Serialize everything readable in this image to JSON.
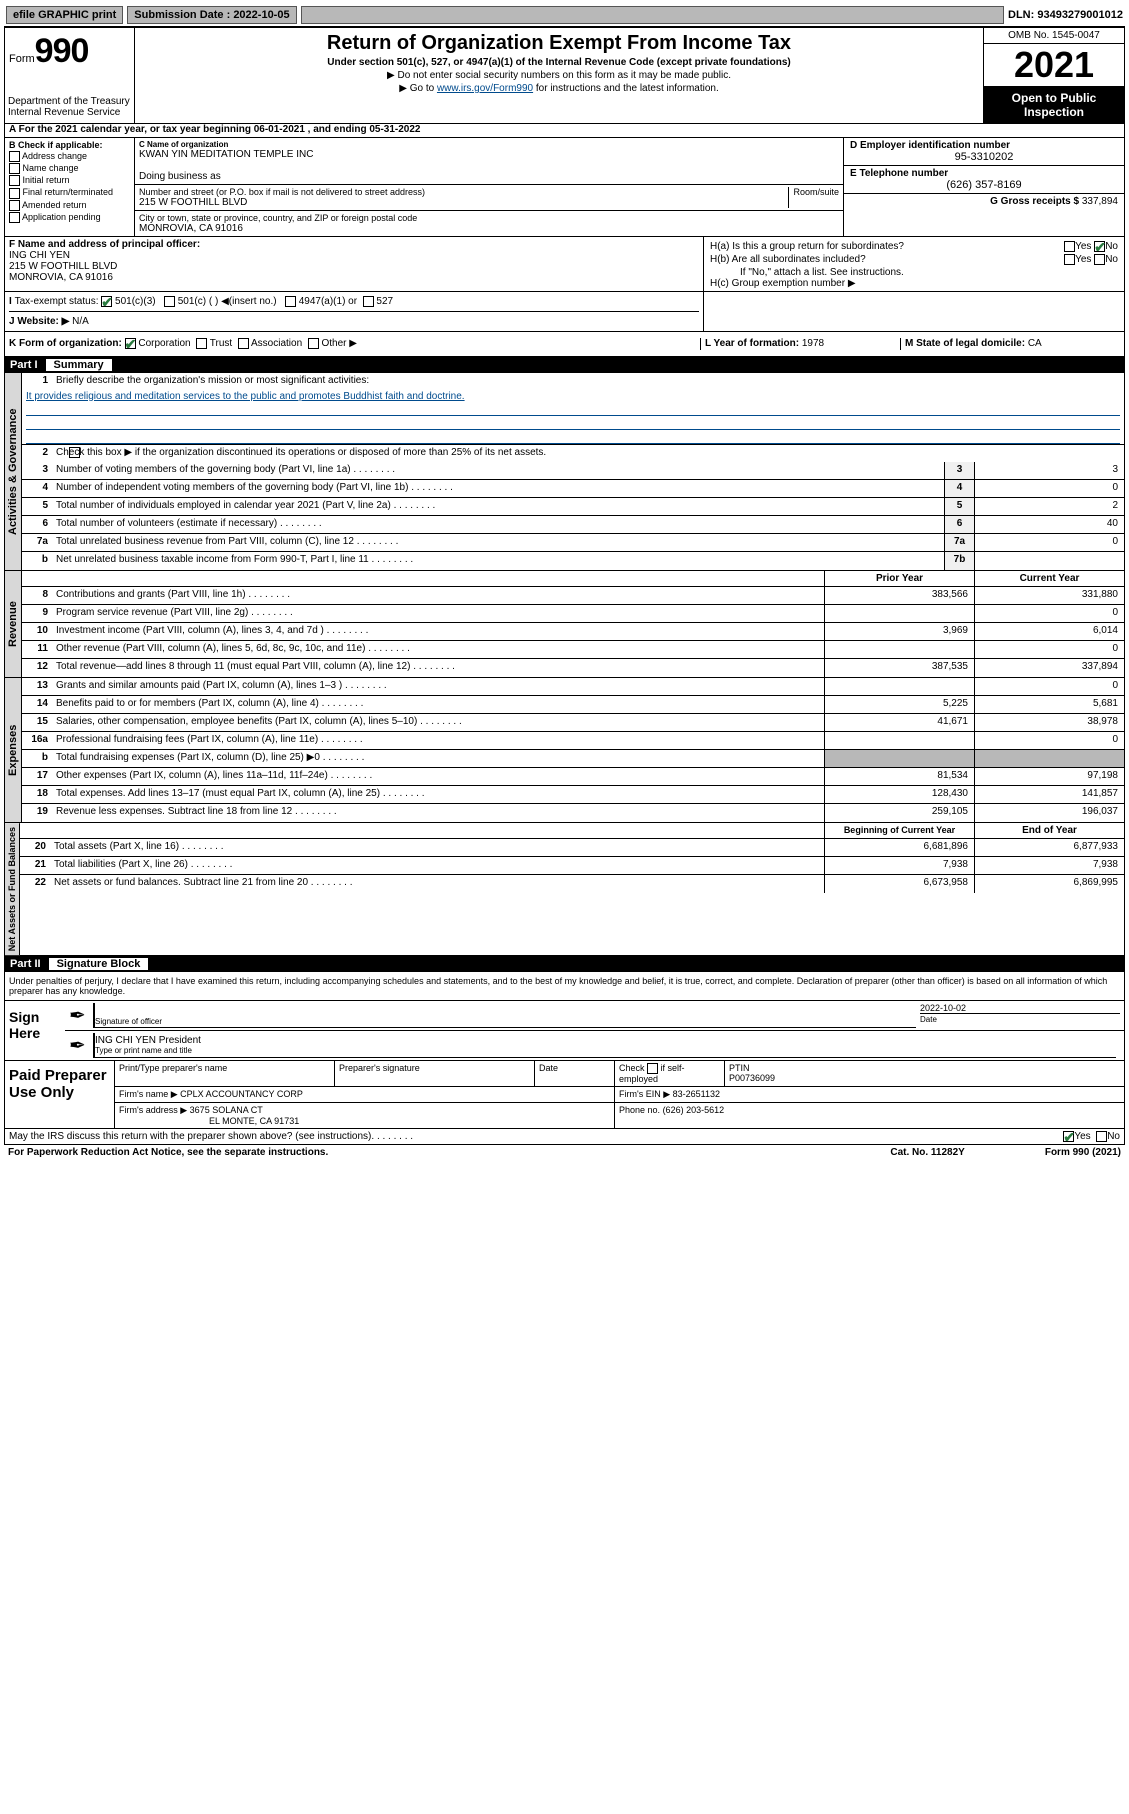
{
  "topbar": {
    "efile": "efile GRAPHIC print",
    "submission_label": "Submission Date : 2022-10-05",
    "dln": "DLN: 93493279001012"
  },
  "header": {
    "form_label": "Form",
    "form_num": "990",
    "title": "Return of Organization Exempt From Income Tax",
    "sub": "Under section 501(c), 527, or 4947(a)(1) of the Internal Revenue Code (except private foundations)",
    "instr1": "▶ Do not enter social security numbers on this form as it may be made public.",
    "instr2_pre": "▶ Go to ",
    "instr2_link": "www.irs.gov/Form990",
    "instr2_post": " for instructions and the latest information.",
    "omb": "OMB No. 1545-0047",
    "year": "2021",
    "open": "Open to Public Inspection",
    "dept": "Department of the Treasury\nInternal Revenue Service"
  },
  "row_a": {
    "text": "For the 2021 calendar year, or tax year beginning 06-01-2021   , and ending 05-31-2022"
  },
  "box_b": {
    "title": "B Check if applicable:",
    "opts": [
      "Address change",
      "Name change",
      "Initial return",
      "Final return/terminated",
      "Amended return",
      "Application pending"
    ]
  },
  "box_c": {
    "name_lbl": "C Name of organization",
    "name": "KWAN YIN MEDITATION TEMPLE INC",
    "dba_lbl": "Doing business as",
    "addr_lbl": "Number and street (or P.O. box if mail is not delivered to street address)",
    "room_lbl": "Room/suite",
    "addr": "215 W FOOTHILL BLVD",
    "city_lbl": "City or town, state or province, country, and ZIP or foreign postal code",
    "city": "MONROVIA, CA  91016"
  },
  "box_de": {
    "d_lbl": "D Employer identification number",
    "ein": "95-3310202",
    "e_lbl": "E Telephone number",
    "phone": "(626) 357-8169",
    "g_lbl": "G Gross receipts $",
    "gross": "337,894"
  },
  "box_f": {
    "lbl": "F Name and address of principal officer:",
    "name": "ING CHI YEN",
    "addr1": "215 W FOOTHILL BLVD",
    "addr2": "MONROVIA, CA  91016"
  },
  "box_h": {
    "ha": "H(a)  Is this a group return for subordinates?",
    "hb": "H(b)  Are all subordinates included?",
    "hb_note": "If \"No,\" attach a list. See instructions.",
    "hc": "H(c)  Group exemption number ▶",
    "yes": "Yes",
    "no": "No"
  },
  "row_i": {
    "lbl": "Tax-exempt status:",
    "opt1": "501(c)(3)",
    "opt2": "501(c) (  ) ◀(insert no.)",
    "opt3": "4947(a)(1) or",
    "opt4": "527"
  },
  "row_j": {
    "lbl": "Website: ▶",
    "val": "N/A"
  },
  "row_k": {
    "lbl": "K Form of organization:",
    "opts": [
      "Corporation",
      "Trust",
      "Association",
      "Other ▶"
    ],
    "l_lbl": "L Year of formation:",
    "l_val": "1978",
    "m_lbl": "M State of legal domicile:",
    "m_val": "CA"
  },
  "part1": {
    "num": "Part I",
    "title": "Summary"
  },
  "summary": {
    "q1": "Briefly describe the organization's mission or most significant activities:",
    "mission": "It provides religious and meditation services to the public and promotes Buddhist faith and doctrine.",
    "q2": "Check this box ▶      if the organization discontinued its operations or disposed of more than 25% of its net assets.",
    "rows_gov": [
      {
        "n": "3",
        "d": "Number of voting members of the governing body (Part VI, line 1a)",
        "k": "3",
        "v": "3"
      },
      {
        "n": "4",
        "d": "Number of independent voting members of the governing body (Part VI, line 1b)",
        "k": "4",
        "v": "0"
      },
      {
        "n": "5",
        "d": "Total number of individuals employed in calendar year 2021 (Part V, line 2a)",
        "k": "5",
        "v": "2"
      },
      {
        "n": "6",
        "d": "Total number of volunteers (estimate if necessary)",
        "k": "6",
        "v": "40"
      },
      {
        "n": "7a",
        "d": "Total unrelated business revenue from Part VIII, column (C), line 12",
        "k": "7a",
        "v": "0"
      },
      {
        "n": "b",
        "d": "Net unrelated business taxable income from Form 990-T, Part I, line 11",
        "k": "7b",
        "v": ""
      }
    ],
    "col_prior": "Prior Year",
    "col_current": "Current Year",
    "rows_rev": [
      {
        "n": "8",
        "d": "Contributions and grants (Part VIII, line 1h)",
        "p": "383,566",
        "c": "331,880"
      },
      {
        "n": "9",
        "d": "Program service revenue (Part VIII, line 2g)",
        "p": "",
        "c": "0"
      },
      {
        "n": "10",
        "d": "Investment income (Part VIII, column (A), lines 3, 4, and 7d )",
        "p": "3,969",
        "c": "6,014"
      },
      {
        "n": "11",
        "d": "Other revenue (Part VIII, column (A), lines 5, 6d, 8c, 9c, 10c, and 11e)",
        "p": "",
        "c": "0"
      },
      {
        "n": "12",
        "d": "Total revenue—add lines 8 through 11 (must equal Part VIII, column (A), line 12)",
        "p": "387,535",
        "c": "337,894"
      }
    ],
    "rows_exp": [
      {
        "n": "13",
        "d": "Grants and similar amounts paid (Part IX, column (A), lines 1–3 )",
        "p": "",
        "c": "0"
      },
      {
        "n": "14",
        "d": "Benefits paid to or for members (Part IX, column (A), line 4)",
        "p": "5,225",
        "c": "5,681"
      },
      {
        "n": "15",
        "d": "Salaries, other compensation, employee benefits (Part IX, column (A), lines 5–10)",
        "p": "41,671",
        "c": "38,978"
      },
      {
        "n": "16a",
        "d": "Professional fundraising fees (Part IX, column (A), line 11e)",
        "p": "",
        "c": "0"
      },
      {
        "n": "b",
        "d": "Total fundraising expenses (Part IX, column (D), line 25) ▶0",
        "p": "grey",
        "c": "grey"
      },
      {
        "n": "17",
        "d": "Other expenses (Part IX, column (A), lines 11a–11d, 11f–24e)",
        "p": "81,534",
        "c": "97,198"
      },
      {
        "n": "18",
        "d": "Total expenses. Add lines 13–17 (must equal Part IX, column (A), line 25)",
        "p": "128,430",
        "c": "141,857"
      },
      {
        "n": "19",
        "d": "Revenue less expenses. Subtract line 18 from line 12",
        "p": "259,105",
        "c": "196,037"
      }
    ],
    "col_begin": "Beginning of Current Year",
    "col_end": "End of Year",
    "rows_net": [
      {
        "n": "20",
        "d": "Total assets (Part X, line 16)",
        "p": "6,681,896",
        "c": "6,877,933"
      },
      {
        "n": "21",
        "d": "Total liabilities (Part X, line 26)",
        "p": "7,938",
        "c": "7,938"
      },
      {
        "n": "22",
        "d": "Net assets or fund balances. Subtract line 21 from line 20",
        "p": "6,673,958",
        "c": "6,869,995"
      }
    ],
    "vtab_gov": "Activities & Governance",
    "vtab_rev": "Revenue",
    "vtab_exp": "Expenses",
    "vtab_net": "Net Assets or Fund Balances"
  },
  "part2": {
    "num": "Part II",
    "title": "Signature Block"
  },
  "sig": {
    "decl": "Under penalties of perjury, I declare that I have examined this return, including accompanying schedules and statements, and to the best of my knowledge and belief, it is true, correct, and complete. Declaration of preparer (other than officer) is based on all information of which preparer has any knowledge.",
    "sign_here": "Sign Here",
    "sig_officer": "Signature of officer",
    "date_lbl": "Date",
    "date": "2022-10-02",
    "name_title": "ING CHI YEN  President",
    "type_name": "Type or print name and title"
  },
  "prep": {
    "title": "Paid Preparer Use Only",
    "h1": "Print/Type preparer's name",
    "h2": "Preparer's signature",
    "h3": "Date",
    "h4_check": "Check",
    "h4_if": "if self-employed",
    "h5": "PTIN",
    "ptin": "P00736099",
    "firm_name_lbl": "Firm's name     ▶",
    "firm_name": "CPLX ACCOUNTANCY CORP",
    "firm_ein_lbl": "Firm's EIN ▶",
    "firm_ein": "83-2651132",
    "firm_addr_lbl": "Firm's address ▶",
    "firm_addr1": "3675 SOLANA CT",
    "firm_addr2": "EL MONTE, CA  91731",
    "phone_lbl": "Phone no.",
    "phone": "(626) 203-5612"
  },
  "footer": {
    "discuss": "May the IRS discuss this return with the preparer shown above? (see instructions)",
    "yes": "Yes",
    "no": "No",
    "paperwork": "For Paperwork Reduction Act Notice, see the separate instructions.",
    "cat": "Cat. No. 11282Y",
    "form": "Form 990 (2021)"
  }
}
